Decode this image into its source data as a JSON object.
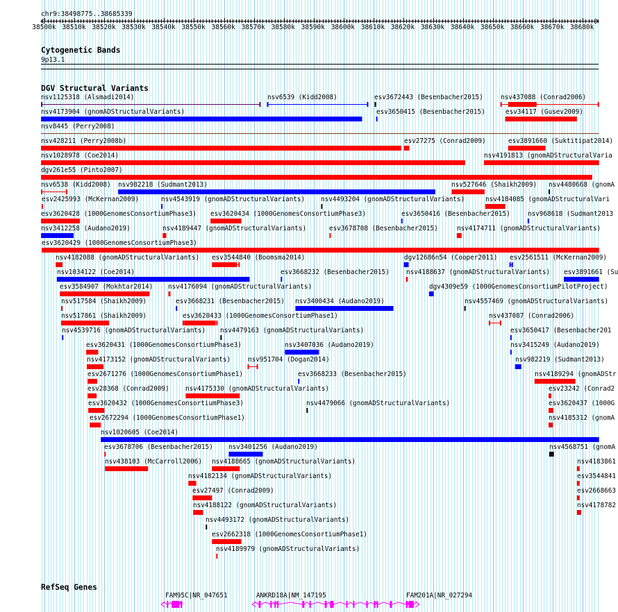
{
  "location": "chr9:38498775..38685339",
  "view": {
    "start_kb": 38498.775,
    "end_kb": 38685.339
  },
  "ruler": {
    "major_every_kb": 10,
    "labels": [
      "38500k",
      "38510k",
      "38520k",
      "38530k",
      "38540k",
      "38550k",
      "38560k",
      "38570k",
      "38580k",
      "38590k",
      "38600k",
      "38610k",
      "38620k",
      "38630k",
      "38640k",
      "38650k",
      "38660k",
      "38670k",
      "38680k"
    ]
  },
  "colors": {
    "red": "#ff0000",
    "blue": "#0000ff",
    "black": "#000000",
    "purple": "#660066",
    "brown": "#8b3a1a",
    "gene": "#ff00ff",
    "grid_minor": "#b4ecf0",
    "grid_major": "#8cc4ec"
  },
  "cytobands": {
    "title": "Cytogenetic Bands",
    "band": "9p13.1"
  },
  "dgv": {
    "title": "DGV Structural Variants",
    "rows": [
      [
        {
          "label": "nsv1125318 (Alsmadi2014)",
          "start": 38498.8,
          "end": 38572.3,
          "color": "purple",
          "style": "line"
        },
        {
          "label": "nsv6539 (Kidd2008)",
          "start": 38574.4,
          "end": 38608.3,
          "color": "blue",
          "style": "line"
        },
        {
          "label": "esv3672443 (Besenbacher2015)",
          "start": 38610.4,
          "end": 38610.9,
          "color": "black",
          "style": "bar"
        },
        {
          "label": "nsv437088 (Conrad2006)",
          "start": 38652.5,
          "end": 38685.5,
          "color": "red",
          "style": "line"
        },
        {
          "label": "",
          "start": 38655.1,
          "end": 38664.6,
          "color": "red",
          "style": "bar"
        }
      ],
      [
        {
          "label": "nsv4173904 (gnomADStructuralVariants)",
          "start": 38498.8,
          "end": 38606.2,
          "color": "blue",
          "style": "bar"
        },
        {
          "label": "esv3650415 (Besenbacher2015)",
          "start": 38610.9,
          "end": 38611.3,
          "color": "blue",
          "style": "bar"
        },
        {
          "label": "esv34117 (Gusev2009)",
          "start": 38654.1,
          "end": 38678.1,
          "color": "red",
          "style": "bar"
        }
      ],
      [
        {
          "label": "nsv8445 (Perry2008)",
          "start": 38498.8,
          "end": 38685.5,
          "color": "brown",
          "style": "plain"
        }
      ],
      [
        {
          "label": "nsv428211 (Perry2008b)",
          "start": 38498.8,
          "end": 38619.3,
          "color": "red",
          "style": "bar"
        },
        {
          "label": "esv27275 (Conrad2009)",
          "start": 38620.2,
          "end": 38622.0,
          "color": "red",
          "style": "bar"
        },
        {
          "label": "esv3891660 (Suktitipat2014)",
          "start": 38655.1,
          "end": 38667.6,
          "color": "red",
          "style": "bar"
        }
      ],
      [
        {
          "label": "nsv1028978 (Coe2014)",
          "start": 38498.8,
          "end": 38640.7,
          "color": "red",
          "style": "bar"
        },
        {
          "label": "nsv4191813 (gnomADStructuralVaria",
          "start": 38647.0,
          "end": 38685.5,
          "color": "red",
          "style": "bar"
        }
      ],
      [
        {
          "label": "dgv261e55 (Pinto2007)",
          "start": 38498.8,
          "end": 38683.2,
          "color": "red",
          "style": "bar"
        }
      ],
      [
        {
          "label": "nsv6538 (Kidd2008)",
          "start": 38498.8,
          "end": 38507.6,
          "color": "red",
          "style": "line"
        },
        {
          "label": "nsv982218 (Sudmant2013)",
          "start": 38524.6,
          "end": 38630.7,
          "color": "blue",
          "style": "bar"
        },
        {
          "label": "nsv527646 (Shaikh2009)",
          "start": 38636.2,
          "end": 38647.2,
          "color": "red",
          "style": "bar"
        },
        {
          "label": "nsv4480668 (gnomA",
          "start": 38668.6,
          "end": 38668.9,
          "color": "black",
          "style": "bar"
        }
      ],
      [
        {
          "label": "esv2425993 (McKernan2009)",
          "start": 38499.0,
          "end": 38499.3,
          "color": "red",
          "style": "line"
        },
        {
          "label": "nsv4543919 (gnomADStructuralVariants)",
          "start": 38539.0,
          "end": 38539.3,
          "color": "blue",
          "style": "bar"
        },
        {
          "label": "nsv4493204 (gnomADStructuralVariants)",
          "start": 38592.5,
          "end": 38592.8,
          "color": "black",
          "style": "bar"
        },
        {
          "label": "nsv4184085 (gnomADStructuralVari",
          "start": 38647.4,
          "end": 38654.1,
          "color": "red",
          "style": "bar"
        }
      ],
      [
        {
          "label": "esv3620428 (1000GenomesConsortiumPhase3)",
          "start": 38498.8,
          "end": 38511.8,
          "color": "red",
          "style": "bar"
        },
        {
          "label": "esv3620434 (1000GenomesConsortiumPhase3)",
          "start": 38555.5,
          "end": 38565.8,
          "color": "red",
          "style": "bar"
        },
        {
          "label": "esv3650416 (Besenbacher2015)",
          "start": 38619.3,
          "end": 38619.6,
          "color": "blue",
          "style": "bar"
        },
        {
          "label": "nsv968618 (Sudmant2013",
          "start": 38661.6,
          "end": 38661.9,
          "color": "blue",
          "style": "bar"
        }
      ],
      [
        {
          "label": "nsv3412258 (Audano2019)",
          "start": 38498.8,
          "end": 38509.7,
          "color": "blue",
          "style": "bar"
        },
        {
          "label": "nsv4189447 (gnomADStructuralVariants)",
          "start": 38539.5,
          "end": 38540.7,
          "color": "red",
          "style": "bar"
        },
        {
          "label": "esv3678708 (Besenbacher2015)",
          "start": 38595.3,
          "end": 38595.6,
          "color": "red",
          "style": "bar"
        },
        {
          "label": "nsv4174711 (gnomADStructuralVariants)",
          "start": 38637.9,
          "end": 38639.5,
          "color": "red",
          "style": "bar"
        }
      ],
      [
        {
          "label": "esv3620429 (1000GenomesConsortiumPhase3)",
          "start": 38499.0,
          "end": 38685.5,
          "color": "red",
          "style": "bar"
        }
      ],
      [
        {
          "label": "nsv4182088 (gnomADStructuralVariants)",
          "start": 38503.7,
          "end": 38506.0,
          "color": "red",
          "style": "bar"
        },
        {
          "label": "esv3544840 (Boomsma2014)",
          "start": 38556.0,
          "end": 38563.9,
          "color": "red",
          "style": "bar"
        },
        {
          "label": "",
          "start": 38563.9,
          "end": 38565.3,
          "color": "red",
          "style": "line"
        },
        {
          "label": "dgv12686n54 (Cooper2011)",
          "start": 38620.2,
          "end": 38621.8,
          "color": "blue",
          "style": "bar"
        },
        {
          "label": "esv2561511 (McKernan2009)",
          "start": 38655.5,
          "end": 38656.7,
          "color": "blue",
          "style": "line"
        }
      ],
      [
        {
          "label": "nsv1034122 (Coe2014)",
          "start": 38504.1,
          "end": 38568.6,
          "color": "blue",
          "style": "bar"
        },
        {
          "label": "esv3668232 (Besenbacher2015)",
          "start": 38579.0,
          "end": 38579.3,
          "color": "blue",
          "style": "bar"
        },
        {
          "label": "nsv4188637 (gnomADStructuralVariants)",
          "start": 38620.9,
          "end": 38621.5,
          "color": "red",
          "style": "bar"
        },
        {
          "label": "esv3891661 (Su",
          "start": 38673.7,
          "end": 38685.5,
          "color": "blue",
          "style": "bar"
        }
      ],
      [
        {
          "label": "esv3584907 (Mokhtar2014)",
          "start": 38505.1,
          "end": 38535.1,
          "color": "red",
          "style": "bar"
        },
        {
          "label": "nsv4176094 (gnomADStructuralVariants)",
          "start": 38541.4,
          "end": 38542.1,
          "color": "red",
          "style": "bar"
        },
        {
          "label": "dgv4309e59 (1000GenomesConsortiumPilotProject)",
          "start": 38628.6,
          "end": 38630.2,
          "color": "blue",
          "style": "bar"
        }
      ],
      [
        {
          "label": "nsv517584 (Shaikh2009)",
          "start": 38505.5,
          "end": 38506.0,
          "color": "red",
          "style": "bar"
        },
        {
          "label": "esv3668231 (Besenbacher2015)",
          "start": 38543.9,
          "end": 38544.2,
          "color": "blue",
          "style": "bar"
        },
        {
          "label": "nsv3400434 (Audano2019)",
          "start": 38583.9,
          "end": 38616.7,
          "color": "blue",
          "style": "bar"
        },
        {
          "label": "nsv4557469 (gnomADStructuralVariants)",
          "start": 38640.4,
          "end": 38640.7,
          "color": "black",
          "style": "bar"
        }
      ],
      [
        {
          "label": "nsv517861 (Shaikh2009)",
          "start": 38505.5,
          "end": 38521.6,
          "color": "red",
          "style": "bar"
        },
        {
          "label": "esv3620433 (1000GenomesConsortiumPhase1)",
          "start": 38546.2,
          "end": 38557.9,
          "color": "red",
          "style": "line"
        },
        {
          "label": "",
          "start": 38546.7,
          "end": 38557.2,
          "color": "red",
          "style": "bar"
        },
        {
          "label": "nsv437087 (Conrad2006)",
          "start": 38648.6,
          "end": 38652.8,
          "color": "red",
          "style": "line"
        }
      ],
      [
        {
          "label": "nsv4539716 (gnomADStructuralVariants)",
          "start": 38505.8,
          "end": 38506.1,
          "color": "blue",
          "style": "bar"
        },
        {
          "label": "nsv4479163 (gnomADStructuralVariants)",
          "start": 38558.8,
          "end": 38559.1,
          "color": "black",
          "style": "bar"
        },
        {
          "label": "esv3650417 (Besenbacher201",
          "start": 38655.8,
          "end": 38656.1,
          "color": "blue",
          "style": "bar"
        }
      ],
      [
        {
          "label": "esv3620431 (1000GenomesConsortiumPhase3)",
          "start": 38513.9,
          "end": 38517.9,
          "color": "red",
          "style": "bar"
        },
        {
          "label": "nsv3407036 (Audano2019)",
          "start": 38580.4,
          "end": 38591.8,
          "color": "blue",
          "style": "bar"
        },
        {
          "label": "nsv3415249 (Audano2019)",
          "start": 38655.8,
          "end": 38656.1,
          "color": "blue",
          "style": "bar"
        }
      ],
      [
        {
          "label": "nsv4173152 (gnomADStructuralVariants)",
          "start": 38514.1,
          "end": 38519.7,
          "color": "red",
          "style": "bar"
        },
        {
          "label": "nsv951704 (Dogan2014)",
          "start": 38567.9,
          "end": 38571.4,
          "color": "red",
          "style": "line"
        },
        {
          "label": "nsv982219 (Sudmant2013)",
          "start": 38657.4,
          "end": 38659.5,
          "color": "blue",
          "style": "bar"
        }
      ],
      [
        {
          "label": "esv2671276 (1000GenomesConsortiumPhase1)",
          "start": 38514.4,
          "end": 38517.6,
          "color": "red",
          "style": "bar"
        },
        {
          "label": "esv3668233 (Besenbacher2015)",
          "start": 38584.8,
          "end": 38585.1,
          "color": "blue",
          "style": "bar"
        },
        {
          "label": "nsv4189294 (gnomADStr",
          "start": 38663.9,
          "end": 38677.6,
          "color": "red",
          "style": "bar"
        }
      ],
      [
        {
          "label": "esv28368 (Conrad2009)",
          "start": 38514.4,
          "end": 38517.4,
          "color": "red",
          "style": "bar"
        },
        {
          "label": "nsv4175330 (gnomADStructuralVariants)",
          "start": 38547.2,
          "end": 38565.3,
          "color": "red",
          "style": "bar"
        },
        {
          "label": "esv23242 (Conrad2",
          "start": 38668.6,
          "end": 38669.5,
          "color": "red",
          "style": "bar"
        }
      ],
      [
        {
          "label": "esv3620432 (1000GenomesConsortiumPhase3)",
          "start": 38514.6,
          "end": 38520.0,
          "color": "red",
          "style": "bar"
        },
        {
          "label": "nsv4479066 (gnomADStructuralVariants)",
          "start": 38587.6,
          "end": 38587.9,
          "color": "black",
          "style": "bar"
        },
        {
          "label": "esv3620437 (1000G",
          "start": 38668.6,
          "end": 38670.2,
          "color": "red",
          "style": "bar"
        }
      ],
      [
        {
          "label": "esv2672294 (1000GenomesConsortiumPhase1)",
          "start": 38515.1,
          "end": 38518.8,
          "color": "red",
          "style": "bar"
        },
        {
          "label": "nsv4185312 (gnomA",
          "start": 38668.6,
          "end": 38670.0,
          "color": "red",
          "style": "bar"
        }
      ],
      [
        {
          "label": "nsv1020605 (Coe2014)",
          "start": 38518.8,
          "end": 38685.5,
          "color": "blue",
          "style": "bar"
        }
      ],
      [
        {
          "label": "esv3678706 (Besenbacher2015)",
          "start": 38520.0,
          "end": 38520.4,
          "color": "red",
          "style": "bar"
        },
        {
          "label": "nsv3401256 (Audano2019)",
          "start": 38561.6,
          "end": 38573.0,
          "color": "blue",
          "style": "bar"
        },
        {
          "label": "nsv4568751 (gnomA",
          "start": 38668.8,
          "end": 38670.4,
          "color": "black",
          "style": "bar"
        }
      ],
      [
        {
          "label": "nsv438103 (McCarroll2006)",
          "start": 38520.2,
          "end": 38534.6,
          "color": "red",
          "style": "bar"
        },
        {
          "label": "nsv4188665 (gnomADStructuralVariants)",
          "start": 38556.0,
          "end": 38565.3,
          "color": "red",
          "style": "bar"
        },
        {
          "label": "nsv4183861",
          "start": 38678.1,
          "end": 38679.0,
          "color": "red",
          "style": "bar"
        }
      ],
      [
        {
          "label": "nsv4182134 (gnomADStructuralVariants)",
          "start": 38548.1,
          "end": 38550.7,
          "color": "red",
          "style": "bar"
        },
        {
          "label": "esv3544841",
          "start": 38678.1,
          "end": 38679.0,
          "color": "red",
          "style": "bar"
        }
      ],
      [
        {
          "label": "esv27497 (Conrad2009)",
          "start": 38549.5,
          "end": 38556.0,
          "color": "red",
          "style": "bar"
        },
        {
          "label": "esv2668663",
          "start": 38678.1,
          "end": 38679.0,
          "color": "red",
          "style": "bar"
        }
      ],
      [
        {
          "label": "nsv4188122 (gnomADStructuralVariants)",
          "start": 38549.7,
          "end": 38553.0,
          "color": "red",
          "style": "bar"
        },
        {
          "label": "nsv4178782",
          "start": 38678.1,
          "end": 38679.5,
          "color": "red",
          "style": "bar"
        }
      ],
      [
        {
          "label": "nsv4493172 (gnomADStructuralVariants)",
          "start": 38553.9,
          "end": 38554.2,
          "color": "black",
          "style": "bar"
        }
      ],
      [
        {
          "label": "esv2662318 (1000GenomesConsortiumPhase1)",
          "start": 38556.0,
          "end": 38565.8,
          "color": "red",
          "style": "bar"
        }
      ],
      [
        {
          "label": "nsv4189979 (gnomADStructuralVariants)",
          "start": 38557.4,
          "end": 38557.7,
          "color": "red",
          "style": "bar"
        }
      ]
    ]
  },
  "refseq": {
    "title": "RefSeq Genes",
    "genes": [
      {
        "label": "FAM95C|NR_047651",
        "start": 38539.0,
        "end": 38546.0,
        "strand": "-",
        "exons": [
          [
            38540.9,
            38541.2
          ],
          [
            38542.5,
            38545.1
          ],
          [
            38545.5,
            38546.0
          ]
        ]
      },
      {
        "label": "ANKRD18A|NM_147195",
        "start": 38569.5,
        "end": 38620.7,
        "strand": "-",
        "exons": [
          [
            38571.6,
            38572.3
          ],
          [
            38575.5,
            38575.8
          ],
          [
            38576.9,
            38577.2
          ],
          [
            38577.8,
            38578.1
          ],
          [
            38586.2,
            38586.9
          ],
          [
            38588.6,
            38588.9
          ],
          [
            38593.7,
            38594.4
          ],
          [
            38595.5,
            38596.7
          ],
          [
            38600.9,
            38601.2
          ],
          [
            38603.2,
            38603.5
          ],
          [
            38607.6,
            38608.1
          ],
          [
            38610.2,
            38610.5
          ],
          [
            38611.1,
            38611.4
          ],
          [
            38615.5,
            38616.2
          ]
        ]
      },
      {
        "label": "FAM201A|NR_027294",
        "start": 38620.9,
        "end": 38625.3,
        "strand": "+",
        "exons": [
          [
            38620.9,
            38621.5
          ],
          [
            38621.8,
            38623.5
          ]
        ]
      }
    ]
  }
}
